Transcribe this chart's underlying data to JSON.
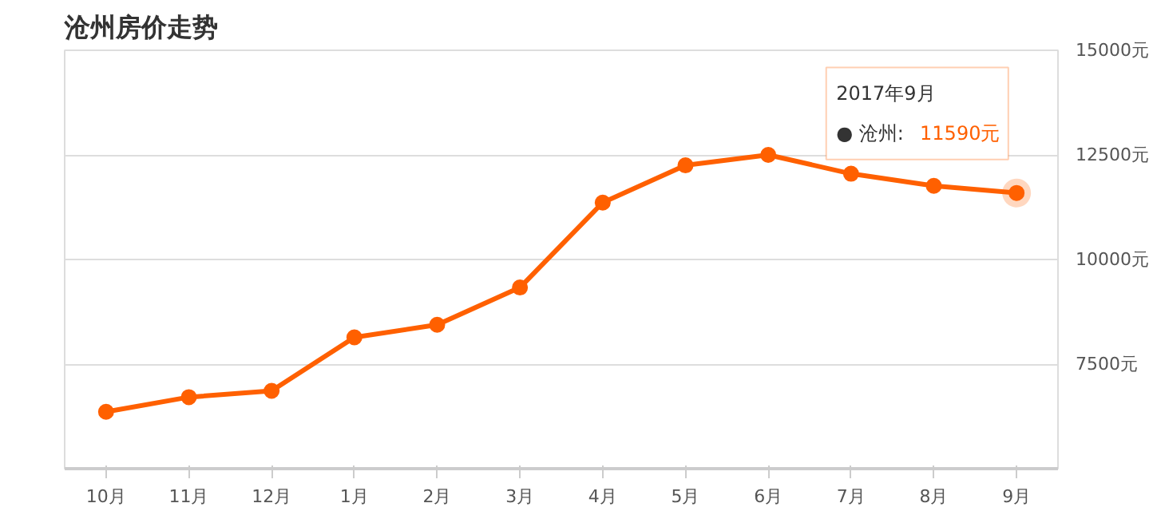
{
  "chart_data": {
    "type": "line",
    "title": "沧州房价走势",
    "categories": [
      "10月",
      "11月",
      "12月",
      "1月",
      "2月",
      "3月",
      "4月",
      "5月",
      "6月",
      "7月",
      "8月",
      "9月"
    ],
    "series": [
      {
        "color": "#ff6000",
        "values": [
          6360,
          6710,
          6860,
          8140,
          8440,
          9330,
          11360,
          12250,
          12500,
          12050,
          11760,
          11590
        ]
      }
    ],
    "ylim": [
      5000,
      15000
    ],
    "yticks": [
      {
        "value": 7500,
        "label": "7500元"
      },
      {
        "value": 10000,
        "label": "10000元"
      },
      {
        "value": 12500,
        "label": "12500元"
      },
      {
        "value": 15000,
        "label": "15000元"
      }
    ],
    "annotations": [
      "2017年9月",
      "● 沧州:",
      "11590元"
    ],
    "grid": "y",
    "marker": "circle",
    "line_style": "solid"
  }
}
